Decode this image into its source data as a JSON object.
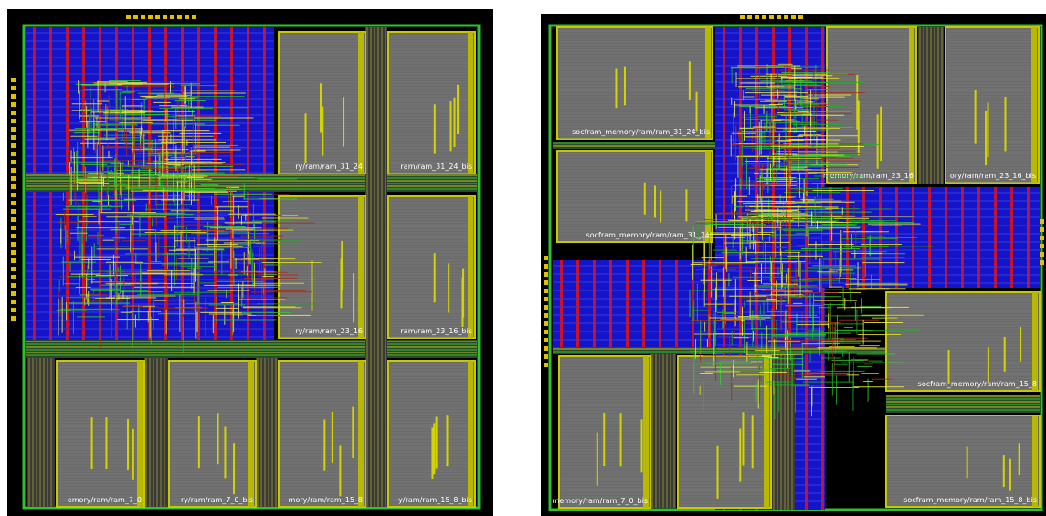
{
  "panels": [
    {
      "labels": [
        "ry/ram/ram_31_24",
        "ram/ram_31_24_bis",
        "ry/ram/ram_23_16",
        "ram/ram_23_16_bis",
        "emory/ram/ram_7_0",
        "ry/ram/ram_7_0_bis",
        "mory/ram/ram_15_8",
        "y/ram/ram_15_8_bis"
      ]
    },
    {
      "labels": [
        "socfram_memory/ram/ram_31_24_bis",
        "socfram_memory/ram/ram_31_24",
        "memory/ram/ram_23_16",
        "ory/ram/ram_23_16_bis",
        "socfram_memory/ram/ram_15_8",
        "socfram_memory/ram/ram_15_8_bis",
        "memory/ram/ram_7_0_bis"
      ]
    }
  ]
}
